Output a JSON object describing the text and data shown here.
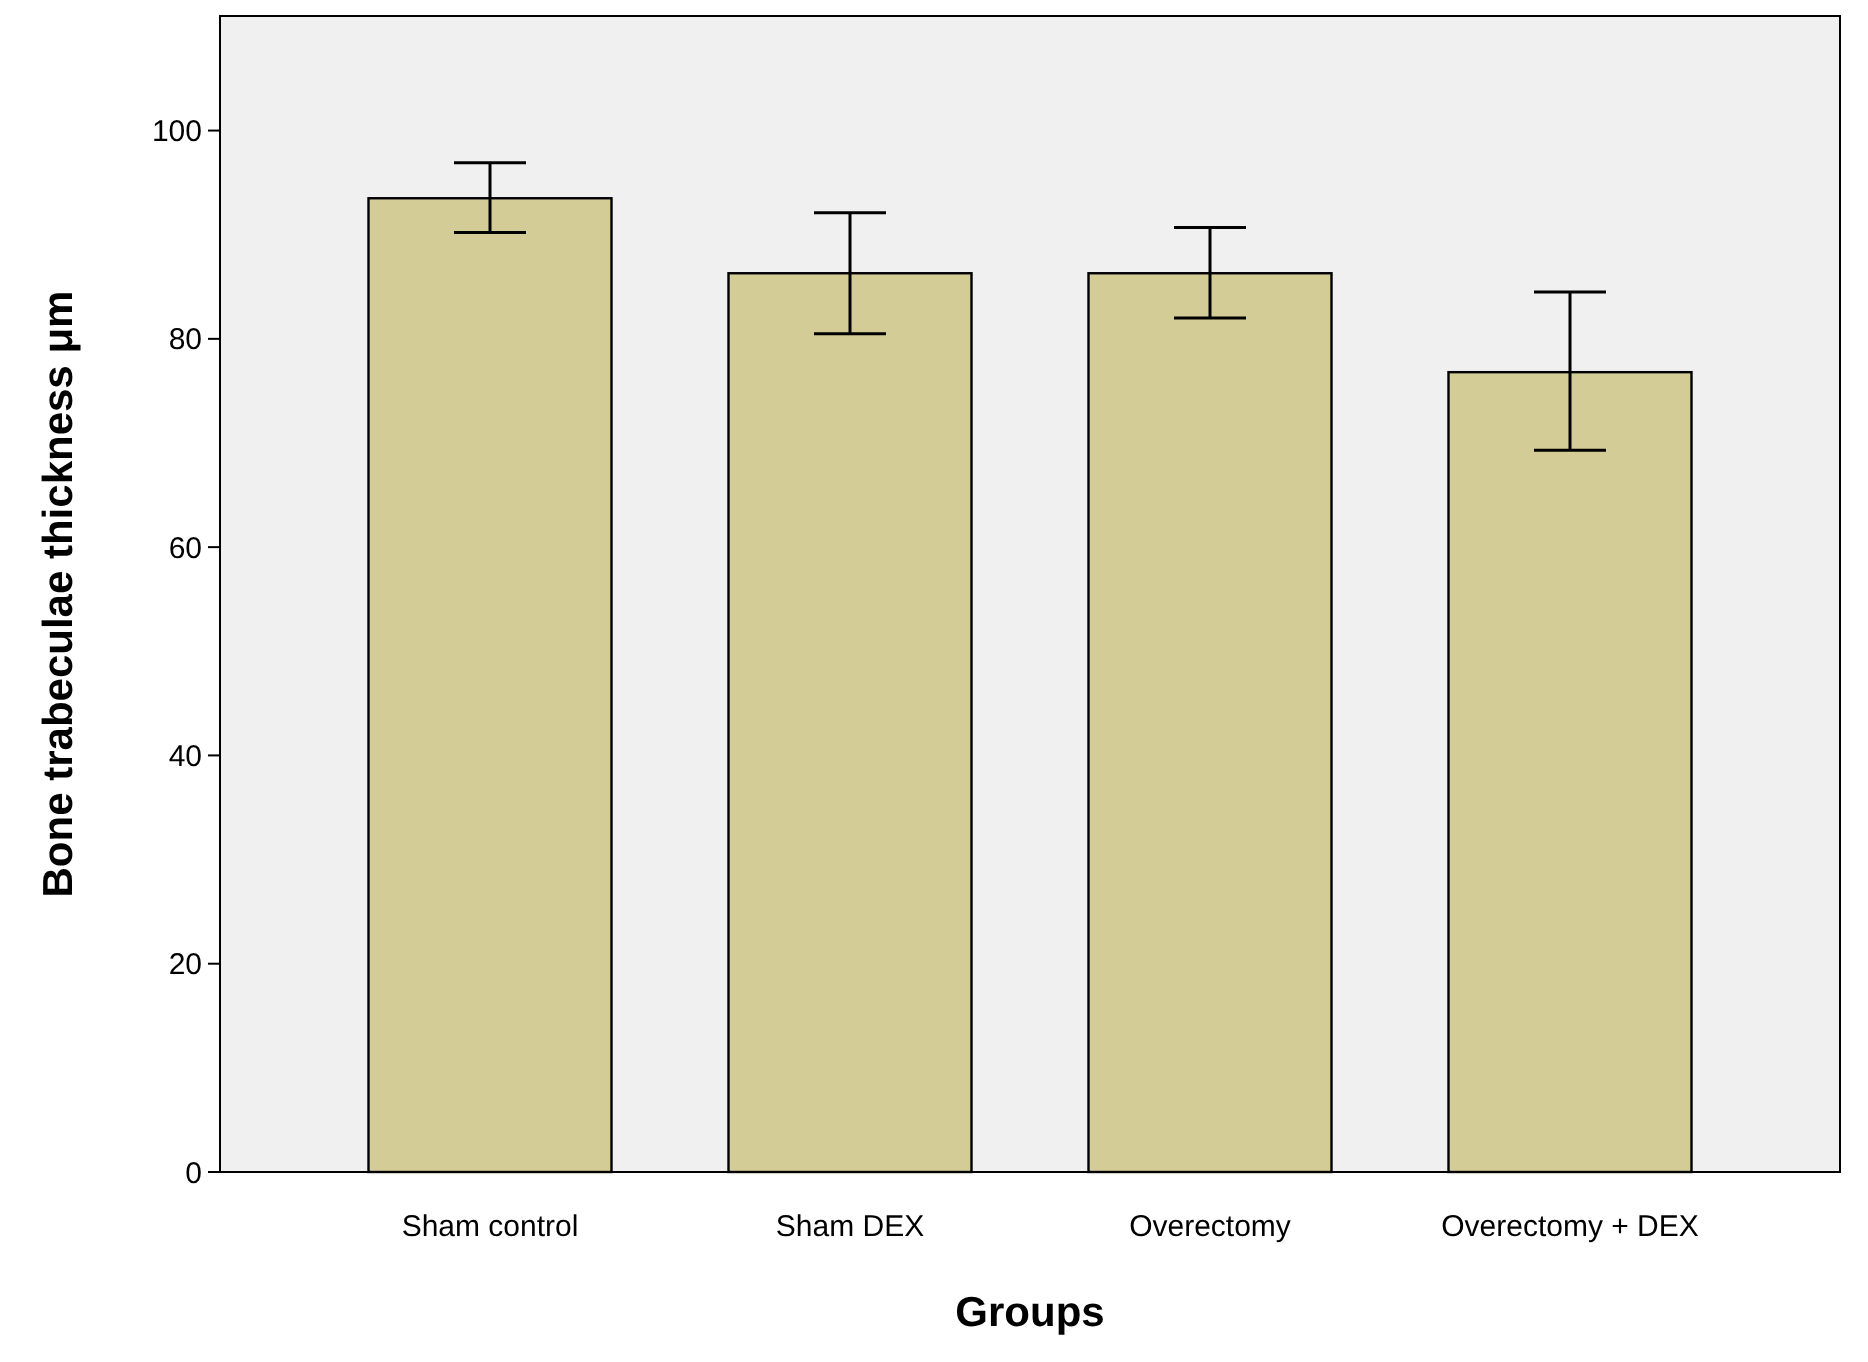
{
  "chart_data": {
    "type": "bar",
    "xlabel": "Groups",
    "ylabel": "Bone trabeculae thickness μm",
    "categories": [
      "Sham control",
      "Sham DEX",
      "Overectomy",
      "Overectomy + DEX"
    ],
    "values": [
      93.5,
      86.3,
      86.3,
      76.8
    ],
    "color": "#d4cc96",
    "errors": [
      [
        90.2,
        96.9
      ],
      [
        80.5,
        92.1
      ],
      [
        82,
        90.7
      ],
      [
        69.3,
        84.5
      ]
    ],
    "ylim": [
      0,
      111
    ],
    "yticks": [
      0,
      20,
      40,
      60,
      80,
      100
    ],
    "grid": false
  }
}
